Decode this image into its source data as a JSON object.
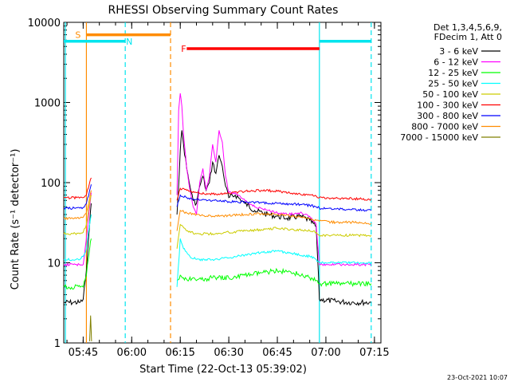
{
  "chart_data": {
    "type": "line",
    "title": "RHESSI Observing Summary Count Rates",
    "xlabel": "Start Time (22-Oct-13 05:39:02)",
    "ylabel": "Count Rate (s⁻¹ detector⁻¹)",
    "yscale": "log",
    "ylim": [
      1,
      10000
    ],
    "xlim": [
      "05:39",
      "07:17"
    ],
    "x_ticks": [
      "05:45",
      "06:00",
      "06:15",
      "06:30",
      "06:45",
      "07:00",
      "07:15"
    ],
    "y_ticks": [
      "1",
      "10",
      "100",
      "1000",
      "10000"
    ],
    "legend_header": [
      "Det 1,3,4,5,6,9,",
      "FDecim 1, Att 0"
    ],
    "legend_placement": "right",
    "footer_date": "23-Oct-2021 10:07",
    "bars": [
      {
        "label": "S",
        "color": "#ff8c00",
        "start": "05:46",
        "end": "06:12",
        "level": 7000
      },
      {
        "label": "N",
        "color": "#00e5ee",
        "start": "05:39",
        "end": "05:58",
        "level": 5800,
        "label_at": "05:58"
      },
      {
        "label": "",
        "color": "#00e5ee",
        "start": "06:58",
        "end": "07:14",
        "level": 5800
      },
      {
        "label": "F",
        "color": "#ff0000",
        "start": "06:17",
        "end": "06:58",
        "level": 4700,
        "label_at": "06:15"
      }
    ],
    "vlines": [
      {
        "x": "05:39.5",
        "color": "#00e5ee",
        "style": "solid"
      },
      {
        "x": "05:46",
        "color": "#ff8c00",
        "style": "solid"
      },
      {
        "x": "05:58",
        "color": "#00e5ee",
        "style": "dashed"
      },
      {
        "x": "06:12",
        "color": "#ff8c00",
        "style": "dashed"
      },
      {
        "x": "06:58",
        "color": "#00e5ee",
        "style": "solid"
      },
      {
        "x": "07:14",
        "color": "#00e5ee",
        "style": "dashed"
      }
    ],
    "series": [
      {
        "name": "3 - 6 keV",
        "color": "#000000",
        "points": [
          [
            "05:39",
            3.2
          ],
          [
            "05:42",
            3.2
          ],
          [
            "05:44",
            3.2
          ],
          [
            "05:45",
            3.5
          ],
          [
            "05:46",
            8
          ],
          [
            "05:47",
            30
          ],
          [
            "05:47.5",
            55
          ],
          [
            "06:14",
            40
          ],
          [
            "06:15",
            250
          ],
          [
            "06:15.5",
            450
          ],
          [
            "06:16",
            300
          ],
          [
            "06:17",
            150
          ],
          [
            "06:18",
            90
          ],
          [
            "06:19",
            60
          ],
          [
            "06:20",
            55
          ],
          [
            "06:21",
            90
          ],
          [
            "06:22",
            120
          ],
          [
            "06:23",
            80
          ],
          [
            "06:24",
            100
          ],
          [
            "06:25",
            180
          ],
          [
            "06:26",
            130
          ],
          [
            "06:27",
            220
          ],
          [
            "06:28",
            160
          ],
          [
            "06:29",
            90
          ],
          [
            "06:30",
            65
          ],
          [
            "06:32",
            70
          ],
          [
            "06:35",
            55
          ],
          [
            "06:38",
            45
          ],
          [
            "06:42",
            40
          ],
          [
            "06:45",
            38
          ],
          [
            "06:48",
            36
          ],
          [
            "06:52",
            38
          ],
          [
            "06:55",
            34
          ],
          [
            "06:57",
            28
          ],
          [
            "06:58",
            3.5
          ],
          [
            "07:03",
            3.3
          ],
          [
            "07:08",
            3.2
          ],
          [
            "07:14",
            3.2
          ]
        ]
      },
      {
        "name": "6 - 12 keV",
        "color": "#ff00ff",
        "points": [
          [
            "05:39",
            9.5
          ],
          [
            "05:42",
            9.5
          ],
          [
            "05:45",
            9.5
          ],
          [
            "05:46",
            20
          ],
          [
            "05:47",
            50
          ],
          [
            "05:47.5",
            75
          ],
          [
            "06:14",
            70
          ],
          [
            "06:14.5",
            800
          ],
          [
            "06:15",
            1300
          ],
          [
            "06:15.5",
            900
          ],
          [
            "06:16",
            400
          ],
          [
            "06:17",
            150
          ],
          [
            "06:18",
            80
          ],
          [
            "06:19",
            50
          ],
          [
            "06:20",
            40
          ],
          [
            "06:21",
            100
          ],
          [
            "06:22",
            150
          ],
          [
            "06:23",
            80
          ],
          [
            "06:24",
            120
          ],
          [
            "06:25",
            300
          ],
          [
            "06:26",
            180
          ],
          [
            "06:27",
            450
          ],
          [
            "06:28",
            320
          ],
          [
            "06:29",
            120
          ],
          [
            "06:30",
            75
          ],
          [
            "06:32",
            75
          ],
          [
            "06:35",
            60
          ],
          [
            "06:38",
            50
          ],
          [
            "06:42",
            45
          ],
          [
            "06:45",
            42
          ],
          [
            "06:48",
            40
          ],
          [
            "06:52",
            42
          ],
          [
            "06:55",
            38
          ],
          [
            "06:57",
            30
          ],
          [
            "06:58",
            9.5
          ],
          [
            "07:03",
            9.5
          ],
          [
            "07:08",
            9.5
          ],
          [
            "07:14",
            9.5
          ]
        ]
      },
      {
        "name": "12 - 25 keV",
        "color": "#00ff00",
        "points": [
          [
            "05:39",
            5
          ],
          [
            "05:45",
            5
          ],
          [
            "05:46",
            7
          ],
          [
            "05:47",
            15
          ],
          [
            "05:47.5",
            20
          ],
          [
            "06:14",
            6
          ],
          [
            "06:15",
            7
          ],
          [
            "06:16",
            6.5
          ],
          [
            "06:20",
            6
          ],
          [
            "06:25",
            6.5
          ],
          [
            "06:30",
            6.5
          ],
          [
            "06:35",
            7
          ],
          [
            "06:40",
            7.5
          ],
          [
            "06:45",
            8
          ],
          [
            "06:50",
            7.5
          ],
          [
            "06:55",
            6.5
          ],
          [
            "06:57",
            6
          ],
          [
            "06:58",
            5.5
          ],
          [
            "07:03",
            5.5
          ],
          [
            "07:08",
            5.5
          ],
          [
            "07:14",
            5.5
          ]
        ]
      },
      {
        "name": "25 - 50 keV",
        "color": "#00ffff",
        "points": [
          [
            "05:39",
            11
          ],
          [
            "05:44",
            11
          ],
          [
            "05:45",
            12
          ],
          [
            "05:46",
            15
          ],
          [
            "05:47",
            30
          ],
          [
            "05:47.5",
            40
          ],
          [
            "06:14",
            5
          ],
          [
            "06:15",
            20
          ],
          [
            "06:16",
            15
          ],
          [
            "06:18",
            12
          ],
          [
            "06:20",
            11
          ],
          [
            "06:25",
            11
          ],
          [
            "06:30",
            11.5
          ],
          [
            "06:35",
            12.5
          ],
          [
            "06:40",
            13.5
          ],
          [
            "06:45",
            14
          ],
          [
            "06:50",
            13
          ],
          [
            "06:55",
            12
          ],
          [
            "06:57",
            11
          ],
          [
            "06:58",
            10
          ],
          [
            "07:03",
            10
          ],
          [
            "07:08",
            10
          ],
          [
            "07:14",
            10
          ]
        ]
      },
      {
        "name": "50 - 100 keV",
        "color": "#cccc00",
        "points": [
          [
            "05:39",
            23
          ],
          [
            "05:44",
            23
          ],
          [
            "05:45",
            24
          ],
          [
            "05:46",
            30
          ],
          [
            "05:47",
            55
          ],
          [
            "05:47.5",
            70
          ],
          [
            "06:14",
            15
          ],
          [
            "06:15",
            30
          ],
          [
            "06:17",
            25
          ],
          [
            "06:20",
            23
          ],
          [
            "06:25",
            23
          ],
          [
            "06:30",
            24
          ],
          [
            "06:35",
            25
          ],
          [
            "06:40",
            26
          ],
          [
            "06:45",
            27
          ],
          [
            "06:50",
            26
          ],
          [
            "06:55",
            25
          ],
          [
            "06:57",
            24
          ],
          [
            "06:58",
            22
          ],
          [
            "07:03",
            22
          ],
          [
            "07:08",
            22
          ],
          [
            "07:14",
            22
          ]
        ]
      },
      {
        "name": "100 - 300 keV",
        "color": "#ff0000",
        "points": [
          [
            "05:39",
            65
          ],
          [
            "05:43",
            65
          ],
          [
            "05:45",
            65
          ],
          [
            "05:46",
            70
          ],
          [
            "05:47",
            100
          ],
          [
            "05:47.5",
            115
          ],
          [
            "06:14",
            60
          ],
          [
            "06:15",
            85
          ],
          [
            "06:17",
            80
          ],
          [
            "06:20",
            75
          ],
          [
            "06:25",
            72
          ],
          [
            "06:30",
            74
          ],
          [
            "06:35",
            78
          ],
          [
            "06:40",
            80
          ],
          [
            "06:45",
            78
          ],
          [
            "06:50",
            74
          ],
          [
            "06:55",
            70
          ],
          [
            "06:57",
            68
          ],
          [
            "06:58",
            65
          ],
          [
            "07:03",
            64
          ],
          [
            "07:08",
            63
          ],
          [
            "07:14",
            62
          ]
        ]
      },
      {
        "name": "300 - 800 keV",
        "color": "#0000ff",
        "points": [
          [
            "05:39",
            48
          ],
          [
            "05:44",
            48
          ],
          [
            "05:45",
            49
          ],
          [
            "05:46",
            55
          ],
          [
            "05:47",
            80
          ],
          [
            "05:47.5",
            95
          ],
          [
            "06:14",
            50
          ],
          [
            "06:15",
            70
          ],
          [
            "06:17",
            65
          ],
          [
            "06:20",
            62
          ],
          [
            "06:25",
            60
          ],
          [
            "06:30",
            58
          ],
          [
            "06:35",
            57
          ],
          [
            "06:40",
            56
          ],
          [
            "06:45",
            55
          ],
          [
            "06:50",
            54
          ],
          [
            "06:55",
            52
          ],
          [
            "06:57",
            50
          ],
          [
            "06:58",
            48
          ],
          [
            "07:03",
            47
          ],
          [
            "07:08",
            46
          ],
          [
            "07:14",
            45
          ]
        ]
      },
      {
        "name": "800 - 7000 keV",
        "color": "#ff8c00",
        "points": [
          [
            "05:39",
            36
          ],
          [
            "05:44",
            36
          ],
          [
            "05:45",
            37
          ],
          [
            "05:46",
            42
          ],
          [
            "05:47",
            65
          ],
          [
            "05:47.5",
            80
          ],
          [
            "06:14",
            25
          ],
          [
            "06:15",
            45
          ],
          [
            "06:17",
            42
          ],
          [
            "06:20",
            40
          ],
          [
            "06:25",
            38
          ],
          [
            "06:30",
            39
          ],
          [
            "06:35",
            40
          ],
          [
            "06:40",
            41
          ],
          [
            "06:45",
            40
          ],
          [
            "06:50",
            38
          ],
          [
            "06:55",
            36
          ],
          [
            "06:57",
            34
          ],
          [
            "06:58",
            33
          ],
          [
            "07:03",
            32
          ],
          [
            "07:08",
            32
          ],
          [
            "07:14",
            31
          ]
        ]
      },
      {
        "name": "7000 - 15000 keV",
        "color": "#808000",
        "points": [
          [
            "05:47",
            1.05
          ],
          [
            "05:47.3",
            2.2
          ],
          [
            "05:47.6",
            1.05
          ]
        ]
      }
    ]
  }
}
